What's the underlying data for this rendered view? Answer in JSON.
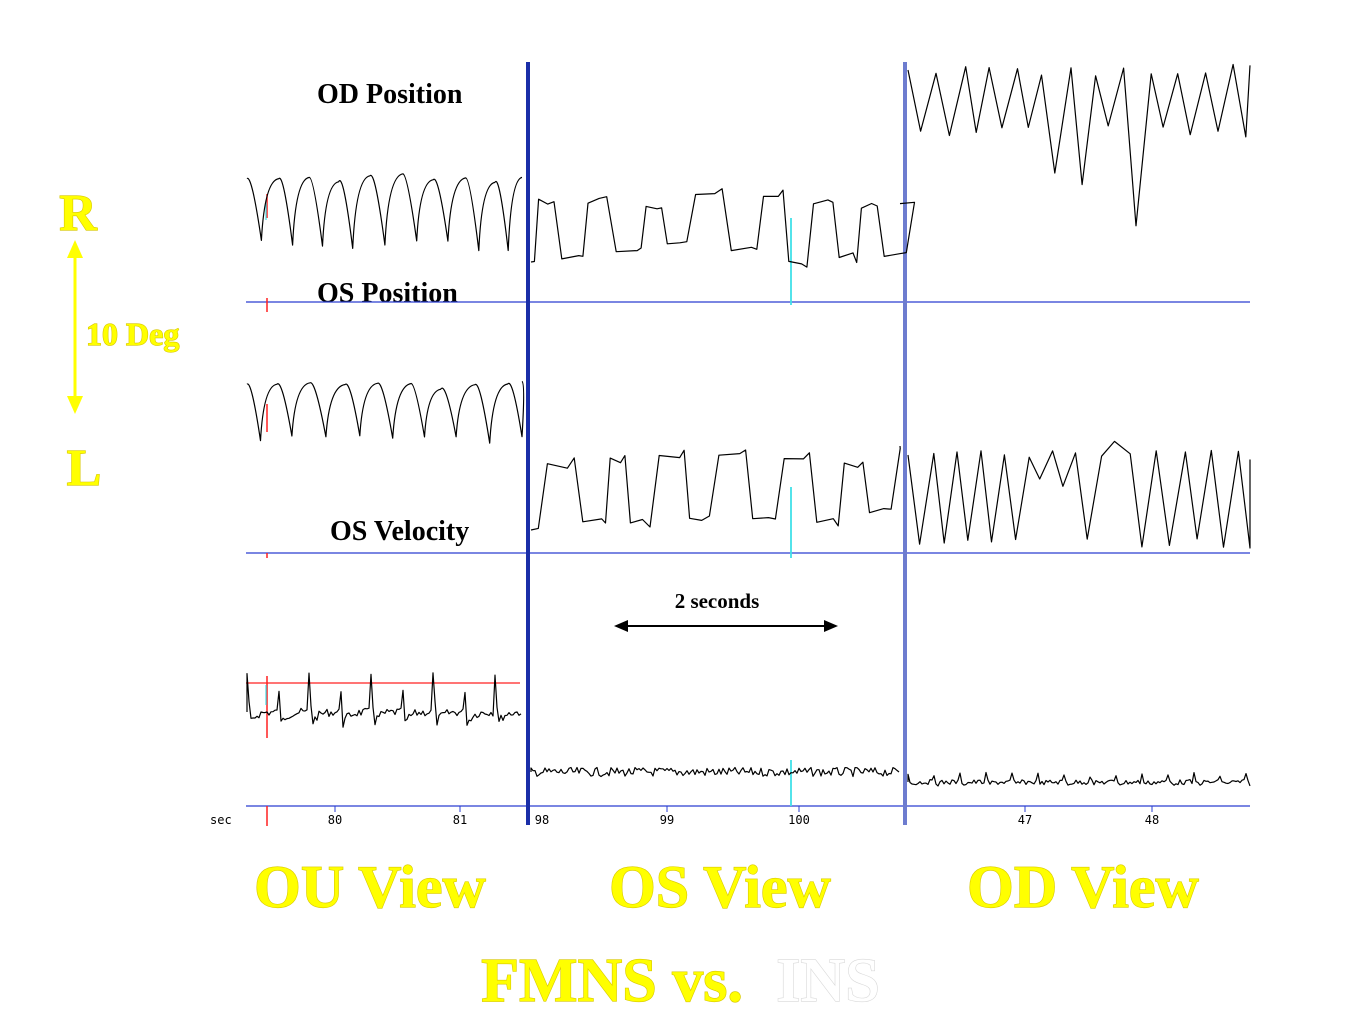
{
  "scale": {
    "top": "R",
    "bottom": "L",
    "amount": "10 Deg"
  },
  "panel_views": [
    "OU View",
    "OS View",
    "OD View"
  ],
  "title": {
    "part1": "FMNS vs.",
    "part2": "INS"
  },
  "colors": {
    "yellow": "#ffff00",
    "baseline": "#2a3fd0",
    "divider1": "#1a2ea8",
    "divider2": "#6d7ccf",
    "marker_red": "#ff2020",
    "marker_cyan": "#40e0e8"
  },
  "chart_data": {
    "type": "line",
    "trace_labels": [
      "OD Position",
      "OS Position",
      "OS Velocity"
    ],
    "x_unit_label": "sec",
    "time_scale_annotation": "2 seconds",
    "x_tick_labels": {
      "ou": [
        "80",
        "81"
      ],
      "os": [
        "98",
        "99",
        "100"
      ],
      "od": [
        "47",
        "48"
      ]
    }
  }
}
